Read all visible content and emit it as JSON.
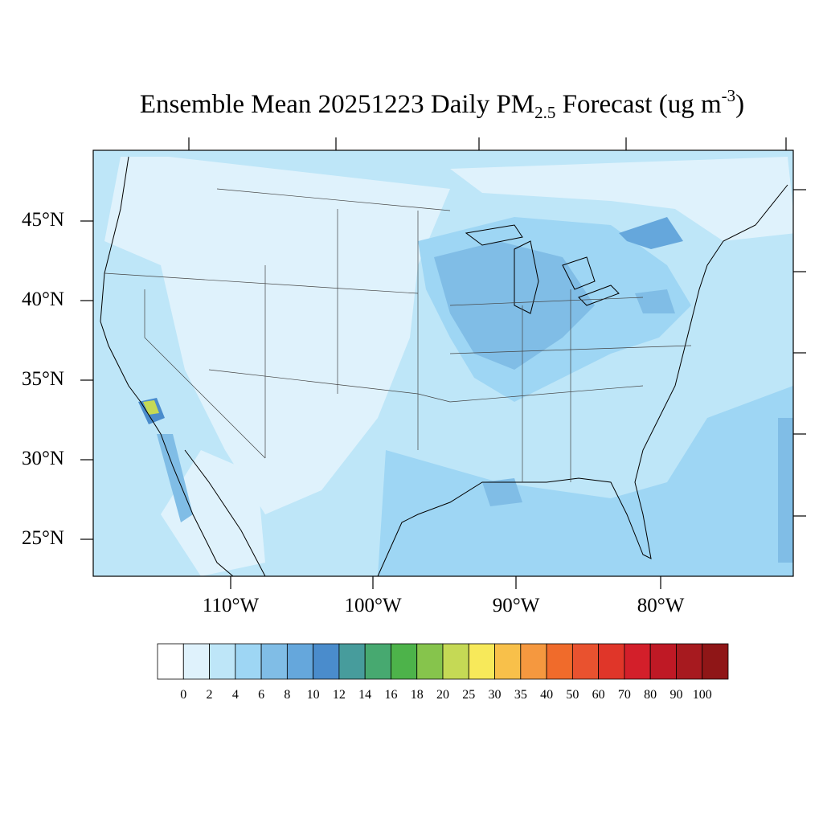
{
  "title": {
    "prefix": "Ensemble Mean 20251223 Daily PM",
    "sub": "2.5",
    "middle": " Forecast (ug m",
    "sup": "-3",
    "suffix": ")"
  },
  "map": {
    "projection": "Lambert-like conic, contiguous United States",
    "lat_labels": [
      "45°N",
      "40°N",
      "35°N",
      "30°N",
      "25°N"
    ],
    "lon_labels": [
      "110°W",
      "100°W",
      "90°W",
      "80°W"
    ],
    "background_class": "2-4"
  },
  "colorbar": {
    "levels": [
      "0",
      "2",
      "4",
      "6",
      "8",
      "10",
      "12",
      "14",
      "16",
      "18",
      "20",
      "25",
      "30",
      "35",
      "40",
      "50",
      "60",
      "70",
      "80",
      "90",
      "100"
    ],
    "colors": [
      "#ffffff",
      "#dff2fc",
      "#bee6f8",
      "#9ed6f4",
      "#80bde6",
      "#65a7dc",
      "#4a8ccc",
      "#479c9c",
      "#47a970",
      "#4db34a",
      "#86c44c",
      "#c5d955",
      "#f7e95a",
      "#f8c04a",
      "#f5983f",
      "#f06b2b",
      "#e9522f",
      "#e03629",
      "#d31f2a",
      "#bf1925",
      "#a71a1f",
      "#8f1617"
    ]
  }
}
